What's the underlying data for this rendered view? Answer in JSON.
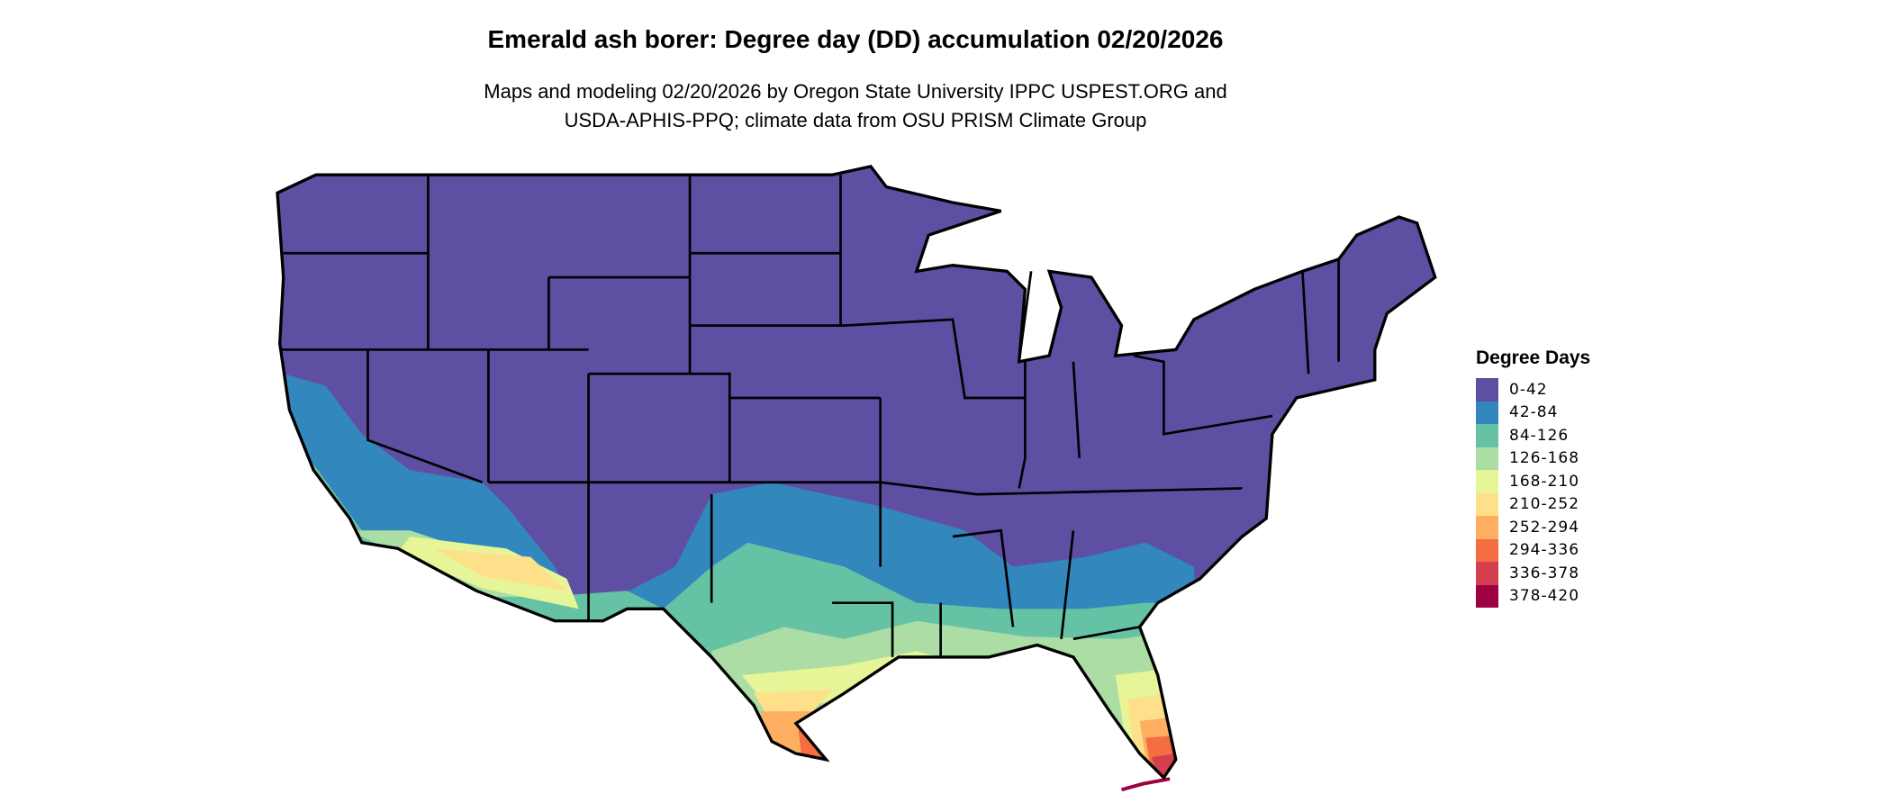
{
  "title": "Emerald ash borer: Degree day (DD) accumulation 02/20/2026",
  "subtitle_line1": "Maps and modeling 02/20/2026 by Oregon State University IPPC USPEST.ORG and",
  "subtitle_line2": "USDA-APHIS-PPQ; climate data from OSU PRISM Climate Group",
  "map": {
    "region": "Contiguous United States",
    "boundaries": "state outlines"
  },
  "legend": {
    "title": "Degree Days",
    "items": [
      {
        "label": "0-42",
        "color": "#5E4FA2"
      },
      {
        "label": "42-84",
        "color": "#3288BD"
      },
      {
        "label": "84-126",
        "color": "#66C2A5"
      },
      {
        "label": "126-168",
        "color": "#ABDDA4"
      },
      {
        "label": "168-210",
        "color": "#E6F598"
      },
      {
        "label": "210-252",
        "color": "#FEE08B"
      },
      {
        "label": "252-294",
        "color": "#FDAE61"
      },
      {
        "label": "294-336",
        "color": "#F46D43"
      },
      {
        "label": "336-378",
        "color": "#D53E4F"
      },
      {
        "label": "378-420",
        "color": "#9E0142"
      }
    ]
  }
}
